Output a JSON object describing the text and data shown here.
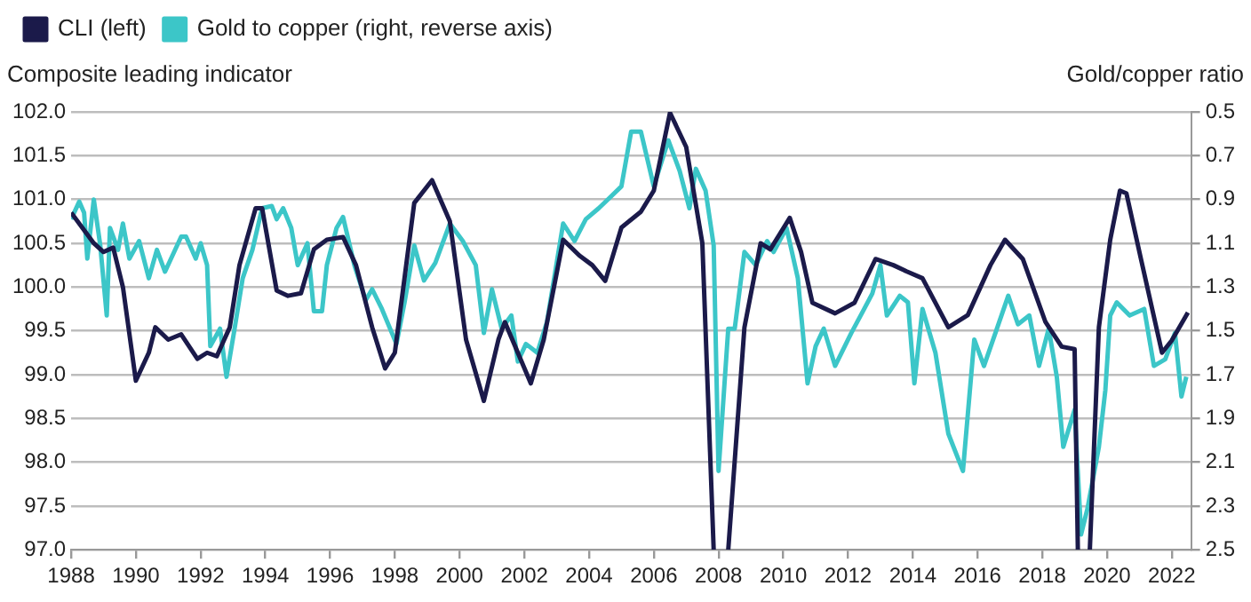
{
  "chart_data": {
    "type": "line",
    "ylabel": "Composite leading indicator",
    "y2label": "Gold/copper ratio",
    "xlim": [
      1988,
      2022.6
    ],
    "xticks": [
      1988,
      1990,
      1992,
      1994,
      1996,
      1998,
      2000,
      2002,
      2004,
      2006,
      2008,
      2010,
      2012,
      2014,
      2016,
      2018,
      2020,
      2022
    ],
    "ylim": [
      97,
      102
    ],
    "yticks": [
      {
        "value": 97,
        "label": "97.0"
      },
      {
        "value": 97.5,
        "label": "97.5"
      },
      {
        "value": 98,
        "label": "98.0"
      },
      {
        "value": 98.5,
        "label": "98.5"
      },
      {
        "value": 99,
        "label": "99.0"
      },
      {
        "value": 99.5,
        "label": "99.5"
      },
      {
        "value": 100,
        "label": "100.0"
      },
      {
        "value": 100.5,
        "label": "100.5"
      },
      {
        "value": 101,
        "label": "101.0"
      },
      {
        "value": 101.5,
        "label": "101.5"
      },
      {
        "value": 102,
        "label": "102.0"
      }
    ],
    "y2lim": [
      2.5,
      0.5
    ],
    "y2ticks": [
      0.5,
      0.7,
      0.9,
      1.1,
      1.3,
      1.5,
      1.7,
      1.9,
      2.1,
      2.3,
      2.5
    ],
    "grid": "y",
    "legend": "top left",
    "marker": "none",
    "line_style": "solid",
    "series": [
      {
        "name": "CLI (left)",
        "color": "#1b1a4a",
        "axis": "y",
        "x": [
          1988.0,
          1988.7,
          1989.0,
          1989.3,
          1989.6,
          1990.0,
          1990.4,
          1990.6,
          1991.0,
          1991.4,
          1991.9,
          1992.2,
          1992.5,
          1992.9,
          1993.2,
          1993.7,
          1993.9,
          1994.35,
          1994.7,
          1995.1,
          1995.5,
          1995.9,
          1996.4,
          1996.8,
          1997.3,
          1997.7,
          1998.0,
          1998.6,
          1999.15,
          1999.7,
          2000.2,
          2000.75,
          2001.2,
          2001.4,
          2001.8,
          2002.2,
          2002.6,
          2003.2,
          2003.7,
          2004.1,
          2004.5,
          2005.0,
          2005.6,
          2006.0,
          2006.5,
          2007.0,
          2007.5,
          2007.85,
          2008.0,
          2008.3,
          2008.8,
          2009.3,
          2009.6,
          2010.2,
          2010.55,
          2010.9,
          2011.6,
          2012.2,
          2012.85,
          2013.4,
          2013.8,
          2014.3,
          2015.1,
          2015.7,
          2016.4,
          2016.85,
          2017.4,
          2018.1,
          2018.6,
          2019.0,
          2019.1,
          2019.3,
          2019.47,
          2019.75,
          2020.1,
          2020.4,
          2020.6,
          2021.05,
          2021.7,
          2022.0,
          2022.5
        ],
        "values": [
          100.85,
          100.5,
          100.4,
          100.45,
          100.0,
          98.93,
          99.25,
          99.54,
          99.4,
          99.46,
          99.18,
          99.25,
          99.21,
          99.54,
          100.25,
          100.9,
          100.9,
          99.96,
          99.9,
          99.93,
          100.43,
          100.54,
          100.57,
          100.25,
          99.54,
          99.07,
          99.25,
          100.96,
          101.22,
          100.75,
          99.4,
          98.7,
          99.4,
          99.6,
          99.25,
          98.9,
          99.4,
          100.54,
          100.36,
          100.25,
          100.07,
          100.68,
          100.86,
          101.1,
          101.99,
          101.6,
          100.5,
          97.0,
          null,
          97.0,
          99.54,
          100.5,
          100.43,
          100.79,
          100.4,
          99.82,
          99.7,
          99.82,
          100.32,
          100.25,
          100.18,
          100.1,
          99.54,
          99.68,
          100.25,
          100.54,
          100.32,
          99.6,
          99.32,
          99.29,
          97.0,
          null,
          97.0,
          99.54,
          100.54,
          101.1,
          101.07,
          100.32,
          99.25,
          99.39,
          99.71
        ]
      },
      {
        "name": "Gold to copper (right, reverse axis)",
        "color": "#3cc6c8",
        "axis": "y2",
        "x": [
          1988.0,
          1988.25,
          1988.4,
          1988.5,
          1988.7,
          1988.9,
          1989.1,
          1989.2,
          1989.45,
          1989.6,
          1989.8,
          1990.1,
          1990.4,
          1990.65,
          1990.9,
          1991.4,
          1991.55,
          1991.85,
          1992.0,
          1992.2,
          1992.3,
          1992.6,
          1992.8,
          1993.05,
          1993.3,
          1993.6,
          1993.9,
          1994.2,
          1994.35,
          1994.55,
          1994.8,
          1995.0,
          1995.3,
          1995.5,
          1995.75,
          1995.9,
          1996.2,
          1996.4,
          1996.75,
          1997.1,
          1997.3,
          1997.6,
          1998.05,
          1998.3,
          1998.6,
          1998.9,
          1999.25,
          1999.7,
          2000.1,
          2000.5,
          2000.75,
          2001.0,
          2001.3,
          2001.6,
          2001.8,
          2002.05,
          2002.4,
          2002.7,
          2003.2,
          2003.55,
          2003.9,
          2004.3,
          2004.65,
          2005.0,
          2005.3,
          2005.6,
          2006.0,
          2006.45,
          2006.8,
          2007.1,
          2007.3,
          2007.6,
          2007.85,
          2008.0,
          2008.3,
          2008.5,
          2008.8,
          2009.15,
          2009.5,
          2009.7,
          2010.1,
          2010.45,
          2010.75,
          2011.0,
          2011.25,
          2011.6,
          2012.1,
          2012.5,
          2012.75,
          2013.0,
          2013.2,
          2013.6,
          2013.85,
          2014.05,
          2014.3,
          2014.7,
          2015.1,
          2015.55,
          2015.9,
          2016.2,
          2016.6,
          2016.95,
          2017.25,
          2017.6,
          2017.9,
          2018.2,
          2018.45,
          2018.65,
          2019.0,
          2019.2,
          2019.4,
          2019.75,
          2019.95,
          2020.1,
          2020.3,
          2020.7,
          2021.15,
          2021.45,
          2021.8,
          2022.1,
          2022.3,
          2022.45
        ],
        "values": [
          0.99,
          0.91,
          0.96,
          1.17,
          0.9,
          1.11,
          1.43,
          1.03,
          1.13,
          1.01,
          1.17,
          1.09,
          1.26,
          1.13,
          1.23,
          1.07,
          1.07,
          1.17,
          1.1,
          1.2,
          1.57,
          1.49,
          1.71,
          1.49,
          1.26,
          1.13,
          0.94,
          0.93,
          0.99,
          0.94,
          1.03,
          1.2,
          1.1,
          1.41,
          1.41,
          1.2,
          1.03,
          0.98,
          1.2,
          1.36,
          1.31,
          1.4,
          1.56,
          1.37,
          1.11,
          1.27,
          1.19,
          1.01,
          1.09,
          1.2,
          1.51,
          1.31,
          1.49,
          1.43,
          1.64,
          1.56,
          1.6,
          1.46,
          1.01,
          1.09,
          0.99,
          0.94,
          0.89,
          0.84,
          0.59,
          0.59,
          0.84,
          0.63,
          0.77,
          0.94,
          0.76,
          0.86,
          1.11,
          2.14,
          1.49,
          1.49,
          1.14,
          1.2,
          1.09,
          1.14,
          1.03,
          1.26,
          1.74,
          1.57,
          1.49,
          1.66,
          1.51,
          1.4,
          1.33,
          1.2,
          1.43,
          1.34,
          1.37,
          1.74,
          1.4,
          1.6,
          1.97,
          2.14,
          1.54,
          1.66,
          1.49,
          1.34,
          1.47,
          1.43,
          1.66,
          1.49,
          1.71,
          2.03,
          1.86,
          2.43,
          2.31,
          2.03,
          1.77,
          1.43,
          1.37,
          1.43,
          1.4,
          1.66,
          1.63,
          1.51,
          1.8,
          1.71
        ]
      }
    ]
  }
}
